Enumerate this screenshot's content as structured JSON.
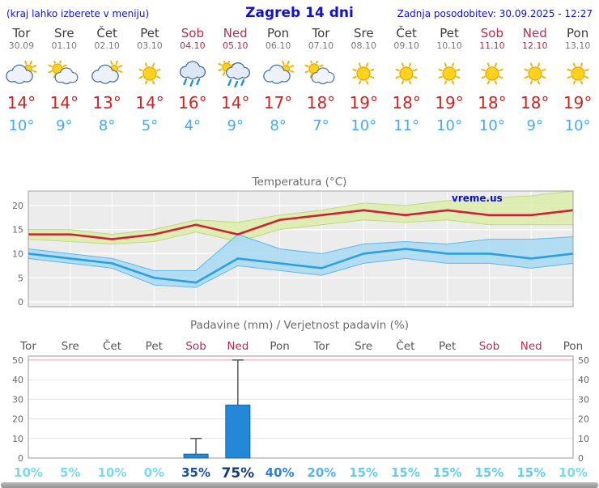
{
  "header": {
    "left_note": "(kraj lahko izberete v meniju)",
    "title": "Zagreb 14 dni",
    "updated": "Zadnja posodobitev: 30.09.2025 - 12:27"
  },
  "colors": {
    "header_blue": "#1111cc",
    "weekday_text": "#3c3c3c",
    "weekend_text": "#b03050",
    "tmax_red": "#d22222",
    "tmin_blue": "#45aaf0",
    "chart_title_gray": "#6a6a6a"
  },
  "forecast": {
    "days": [
      {
        "name": "Tor",
        "date": "30.09",
        "weekend": false,
        "icon": "cloudy",
        "tmax": "14°",
        "tmin": "10°"
      },
      {
        "name": "Sre",
        "date": "01.10",
        "weekend": false,
        "icon": "partly",
        "tmax": "14°",
        "tmin": "9°"
      },
      {
        "name": "Čet",
        "date": "02.10",
        "weekend": false,
        "icon": "cloudy",
        "tmax": "13°",
        "tmin": "8°"
      },
      {
        "name": "Pet",
        "date": "03.10",
        "weekend": false,
        "icon": "sunny",
        "tmax": "14°",
        "tmin": "5°"
      },
      {
        "name": "Sob",
        "date": "04.10",
        "weekend": true,
        "icon": "rain",
        "tmax": "16°",
        "tmin": "4°"
      },
      {
        "name": "Ned",
        "date": "05.10",
        "weekend": true,
        "icon": "rain-sun",
        "tmax": "14°",
        "tmin": "9°"
      },
      {
        "name": "Pon",
        "date": "06.10",
        "weekend": false,
        "icon": "cloudy",
        "tmax": "17°",
        "tmin": "8°"
      },
      {
        "name": "Tor",
        "date": "07.10",
        "weekend": false,
        "icon": "partly",
        "tmax": "18°",
        "tmin": "7°"
      },
      {
        "name": "Sre",
        "date": "08.10",
        "weekend": false,
        "icon": "sunny",
        "tmax": "19°",
        "tmin": "10°"
      },
      {
        "name": "Čet",
        "date": "09.10",
        "weekend": false,
        "icon": "sunny",
        "tmax": "18°",
        "tmin": "11°"
      },
      {
        "name": "Pet",
        "date": "10.10",
        "weekend": false,
        "icon": "sunny",
        "tmax": "19°",
        "tmin": "10°"
      },
      {
        "name": "Sob",
        "date": "11.10",
        "weekend": true,
        "icon": "sunny",
        "tmax": "18°",
        "tmin": "10°"
      },
      {
        "name": "Ned",
        "date": "12.10",
        "weekend": true,
        "icon": "sunny",
        "tmax": "18°",
        "tmin": "9°"
      },
      {
        "name": "Pon",
        "date": "13.10",
        "weekend": false,
        "icon": "sunny",
        "tmax": "19°",
        "tmin": "10°"
      }
    ]
  },
  "chart_data": [
    {
      "type": "line",
      "title": "Temperatura (°C)",
      "watermark": "vreme.us",
      "categories": [
        "Tor",
        "Sre",
        "Čet",
        "Pet",
        "Sob",
        "Ned",
        "Pon",
        "Tor",
        "Sre",
        "Čet",
        "Pet",
        "Sob",
        "Ned",
        "Pon"
      ],
      "ylim": [
        -1,
        23
      ],
      "yticks": [
        0,
        5,
        10,
        15,
        20
      ],
      "series": [
        {
          "name": "max-temperature-line",
          "color": "#cc2233",
          "values": [
            14,
            14,
            13,
            14,
            16,
            14,
            17,
            18,
            19,
            18,
            19,
            18,
            18,
            19
          ]
        },
        {
          "name": "min-temperature-line",
          "color": "#2b9fe0",
          "values": [
            10,
            9,
            8,
            5,
            4,
            9,
            8,
            7,
            10,
            11,
            10,
            10,
            9,
            10
          ]
        }
      ],
      "bands": [
        {
          "name": "max-temperature-band",
          "fill": "#dcedaa",
          "edge": "#c2d877",
          "upper": [
            15,
            15,
            14,
            15,
            17,
            16.5,
            18,
            19,
            20.5,
            20,
            21,
            21.5,
            22,
            23
          ],
          "lower": [
            13,
            12.5,
            12,
            12.5,
            14.5,
            12.5,
            15,
            16,
            17,
            16.5,
            17,
            16,
            16,
            16
          ]
        },
        {
          "name": "min-temperature-band",
          "fill": "#a8d9f2",
          "edge": "#5fb8e8",
          "upper": [
            11,
            10,
            9,
            6.5,
            6.5,
            14,
            11,
            10,
            12,
            12.5,
            12,
            13,
            13,
            13.5
          ],
          "lower": [
            9,
            8,
            7,
            3.5,
            3,
            7.5,
            6.5,
            5.5,
            8,
            9,
            8,
            8,
            7,
            8
          ]
        }
      ]
    },
    {
      "type": "bar",
      "title": "Padavine (mm) / Verjetnost padavin (%)",
      "categories": [
        "Tor",
        "Sre",
        "Čet",
        "Pet",
        "Sob",
        "Ned",
        "Pon",
        "Tor",
        "Sre",
        "Čet",
        "Pet",
        "Sob",
        "Ned",
        "Pon"
      ],
      "weekend": [
        false,
        false,
        false,
        false,
        true,
        true,
        false,
        false,
        false,
        false,
        false,
        true,
        true,
        false
      ],
      "values": [
        0,
        0,
        0,
        0,
        2,
        27,
        0,
        0,
        0,
        0,
        0,
        0,
        0,
        0
      ],
      "whiskers": [
        0,
        0,
        0,
        0,
        10,
        50,
        0,
        0,
        0,
        0,
        0,
        0,
        0,
        0
      ],
      "ylim": [
        0,
        52
      ],
      "yticks": [
        0,
        10,
        20,
        30,
        40,
        50
      ],
      "bar_color": "#2488d8",
      "probabilities": [
        {
          "label": "10%",
          "color": "#7bd9f2"
        },
        {
          "label": "5%",
          "color": "#7bd9f2"
        },
        {
          "label": "10%",
          "color": "#7bd9f2"
        },
        {
          "label": "0%",
          "color": "#7bd9f2"
        },
        {
          "label": "35%",
          "color": "#1c4f9e"
        },
        {
          "label": "75%",
          "color": "#123d80",
          "size": 17
        },
        {
          "label": "40%",
          "color": "#2f7fe0"
        },
        {
          "label": "20%",
          "color": "#55b4ee"
        },
        {
          "label": "15%",
          "color": "#66ccf0"
        },
        {
          "label": "15%",
          "color": "#66ccf0"
        },
        {
          "label": "15%",
          "color": "#66ccf0"
        },
        {
          "label": "15%",
          "color": "#66ccf0"
        },
        {
          "label": "15%",
          "color": "#66ccf0"
        },
        {
          "label": "10%",
          "color": "#7bd9f2"
        }
      ]
    }
  ]
}
